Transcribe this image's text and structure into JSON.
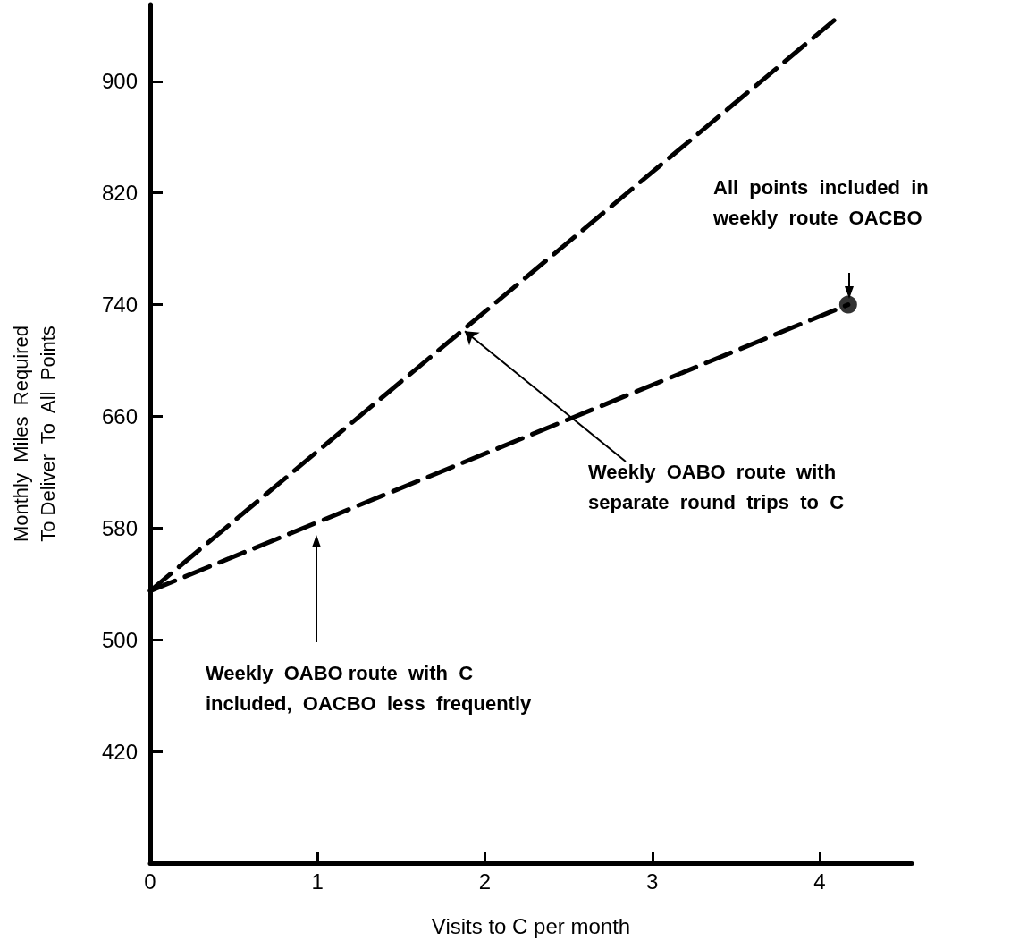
{
  "chart_data": {
    "type": "line",
    "xlabel": "Visits to C per month",
    "ylabel": "Monthly  Miles  Required\nTo Deliver  To  All  Points",
    "xlim": [
      0,
      4.55
    ],
    "xticks": [
      0,
      1,
      2,
      3,
      4
    ],
    "ylim": [
      340,
      955
    ],
    "yticks": [
      420,
      500,
      580,
      660,
      740,
      820,
      900
    ],
    "grid": false,
    "series": [
      {
        "color": "#000000",
        "x": [
          0,
          4.1
        ],
        "values": [
          535,
          945
        ],
        "line_style": "dashed",
        "marker": "none"
      },
      {
        "color": "#000000",
        "x": [
          0,
          4.17
        ],
        "values": [
          535,
          740
        ],
        "line_style": "dashed",
        "marker": "none"
      },
      {
        "type": "scatter",
        "color": "#000000",
        "x": [
          4.17
        ],
        "values": [
          740
        ],
        "marker": "circle"
      }
    ],
    "annotations": [
      "All  points  included  in\nweekly  route  OACBO",
      {
        "text": "Weekly  OABO  route  with\nseparate  round  trips  to  C",
        "x": 1.88,
        "y": 721
      },
      "Weekly  OABO route  with  C\nincluded,  OACBO  less  frequently"
    ]
  }
}
